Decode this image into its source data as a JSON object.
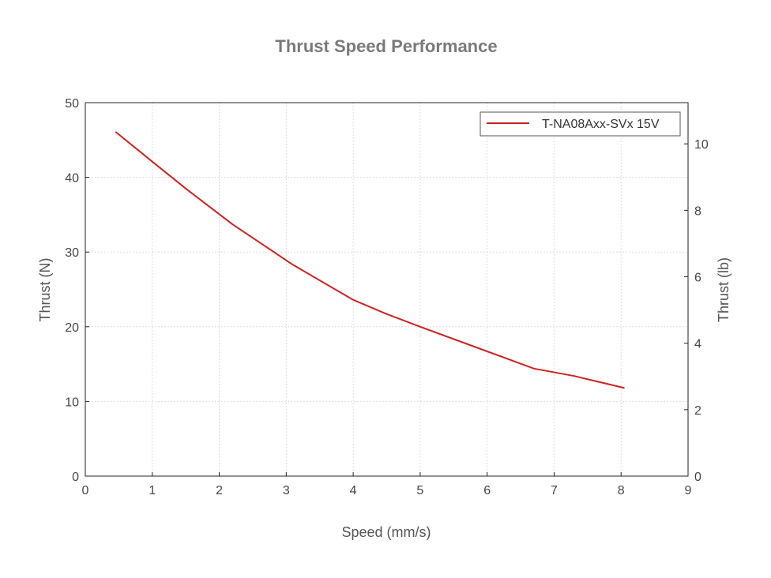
{
  "chart_data": {
    "type": "line",
    "title": "Thrust Speed Performance",
    "xlabel": "Speed (mm/s)",
    "ylabel": "Thrust (N)",
    "y2label": "Thrust (lb)",
    "xlim": [
      0,
      9
    ],
    "ylim": [
      0,
      50
    ],
    "y2lim": [
      0,
      11.24
    ],
    "x_ticks": [
      0,
      1,
      2,
      3,
      4,
      5,
      6,
      7,
      8,
      9
    ],
    "y_ticks": [
      0,
      10,
      20,
      30,
      40,
      50
    ],
    "y2_ticks": [
      0,
      2,
      4,
      6,
      8,
      10
    ],
    "grid": true,
    "legend_position": "top-right",
    "series": [
      {
        "name": "T-NA08Axx-SVx 15V",
        "color": "#cc2222",
        "x": [
          0.45,
          1.0,
          1.5,
          2.2,
          3.1,
          4.0,
          4.5,
          5.0,
          6.0,
          6.7,
          7.3,
          8.05
        ],
        "y": [
          46.1,
          42.1,
          38.5,
          33.7,
          28.3,
          23.6,
          21.7,
          20.0,
          16.7,
          14.4,
          13.4,
          11.8
        ]
      }
    ]
  }
}
